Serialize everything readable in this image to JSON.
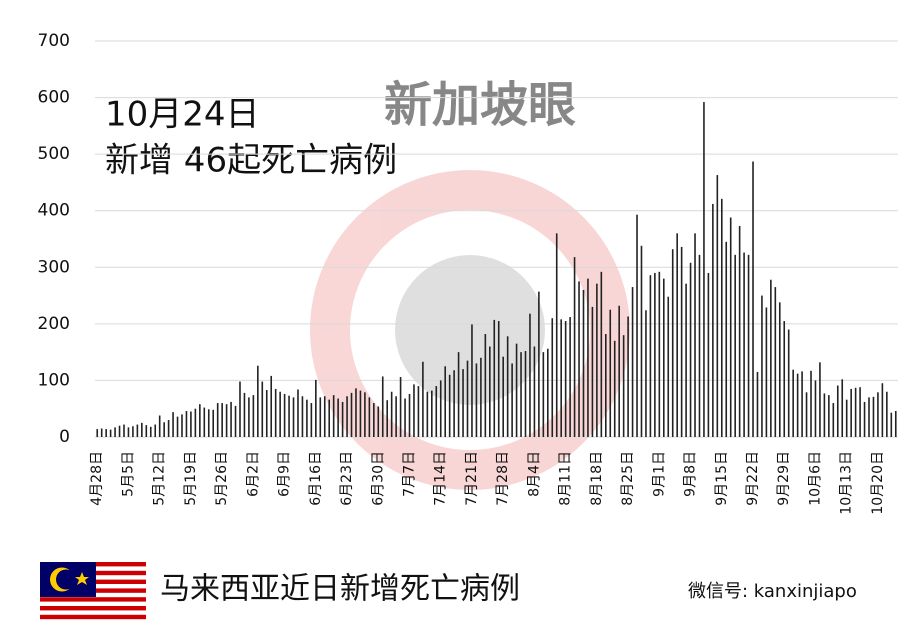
{
  "chart_data": {
    "type": "bar",
    "title": "10月24日",
    "subtitle": "新增 46起死亡病例",
    "caption": "马来西亚近日新增死亡病例",
    "source": "微信号: kanxinjiapo",
    "watermark": "新加坡眼",
    "color": "#222",
    "grid": true,
    "ylim": [
      0,
      700
    ],
    "yticks": [
      0,
      100,
      200,
      300,
      400,
      500,
      600,
      700
    ],
    "categories": [
      "4月28日",
      null,
      null,
      null,
      null,
      null,
      null,
      "5月5日",
      null,
      null,
      null,
      null,
      null,
      null,
      "5月12日",
      null,
      null,
      null,
      null,
      null,
      null,
      "5月19日",
      null,
      null,
      null,
      null,
      null,
      null,
      "5月26日",
      null,
      null,
      null,
      null,
      null,
      null,
      "6月2日",
      null,
      null,
      null,
      null,
      null,
      null,
      "6月9日",
      null,
      null,
      null,
      null,
      null,
      null,
      "6月16日",
      null,
      null,
      null,
      null,
      null,
      null,
      "6月23日",
      null,
      null,
      null,
      null,
      null,
      null,
      "6月30日",
      null,
      null,
      null,
      null,
      null,
      null,
      "7月7日",
      null,
      null,
      null,
      null,
      null,
      null,
      "7月14日",
      null,
      null,
      null,
      null,
      null,
      null,
      "7月21日",
      null,
      null,
      null,
      null,
      null,
      null,
      "7月28日",
      null,
      null,
      null,
      null,
      null,
      null,
      "8月4日",
      null,
      null,
      null,
      null,
      null,
      null,
      "8月11日",
      null,
      null,
      null,
      null,
      null,
      null,
      "8月18日",
      null,
      null,
      null,
      null,
      null,
      null,
      "8月25日",
      null,
      null,
      null,
      null,
      null,
      null,
      "9月1日",
      null,
      null,
      null,
      null,
      null,
      null,
      "9月8日",
      null,
      null,
      null,
      null,
      null,
      null,
      "9月15日",
      null,
      null,
      null,
      null,
      null,
      null,
      "9月22日",
      null,
      null,
      null,
      null,
      null,
      null,
      "9月29日",
      null,
      null,
      null,
      null,
      null,
      null,
      "10月6日",
      null,
      null,
      null,
      null,
      null,
      null,
      "10月13日",
      null,
      null,
      null,
      null,
      null,
      null,
      "10月20日",
      null,
      null,
      null,
      null
    ],
    "values": [
      14,
      15,
      14,
      13,
      17,
      20,
      22,
      17,
      19,
      22,
      25,
      21,
      18,
      22,
      38,
      26,
      30,
      44,
      36,
      40,
      46,
      45,
      50,
      58,
      52,
      49,
      48,
      60,
      60,
      58,
      62,
      55,
      98,
      78,
      70,
      74,
      126,
      98,
      83,
      108,
      85,
      80,
      76,
      73,
      70,
      84,
      72,
      66,
      60,
      101,
      70,
      72,
      66,
      74,
      68,
      62,
      72,
      78,
      86,
      82,
      79,
      70,
      60,
      54,
      107,
      65,
      80,
      72,
      106,
      68,
      76,
      93,
      90,
      133,
      80,
      82,
      90,
      100,
      125,
      110,
      118,
      150,
      120,
      135,
      199,
      130,
      140,
      182,
      160,
      207,
      205,
      142,
      178,
      130,
      165,
      150,
      152,
      218,
      160,
      257,
      150,
      156,
      210,
      360,
      208,
      205,
      212,
      318,
      275,
      260,
      280,
      230,
      271,
      292,
      182,
      225,
      170,
      232,
      180,
      213,
      265,
      393,
      338,
      224,
      286,
      290,
      292,
      280,
      248,
      332,
      360,
      336,
      271,
      308,
      360,
      322,
      592,
      290,
      412,
      463,
      421,
      345,
      388,
      322,
      373,
      326,
      322,
      487,
      115,
      250,
      229,
      278,
      265,
      238,
      205,
      190,
      119,
      112,
      116,
      79,
      117,
      100,
      132,
      77,
      74,
      60,
      91,
      102,
      66,
      85,
      87,
      88,
      62,
      70,
      71,
      79,
      95,
      80,
      43,
      46
    ]
  }
}
